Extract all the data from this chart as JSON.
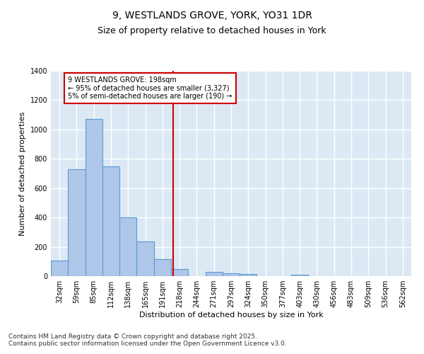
{
  "title1": "9, WESTLANDS GROVE, YORK, YO31 1DR",
  "title2": "Size of property relative to detached houses in York",
  "xlabel": "Distribution of detached houses by size in York",
  "ylabel": "Number of detached properties",
  "bin_labels": [
    "32sqm",
    "59sqm",
    "85sqm",
    "112sqm",
    "138sqm",
    "165sqm",
    "191sqm",
    "218sqm",
    "244sqm",
    "271sqm",
    "297sqm",
    "324sqm",
    "350sqm",
    "377sqm",
    "403sqm",
    "430sqm",
    "456sqm",
    "483sqm",
    "509sqm",
    "536sqm",
    "562sqm"
  ],
  "bar_values": [
    107,
    730,
    1070,
    750,
    400,
    237,
    115,
    47,
    0,
    27,
    20,
    15,
    0,
    0,
    10,
    0,
    0,
    0,
    0,
    0,
    0
  ],
  "bar_color": "#aec6e8",
  "bar_edge_color": "#5b9bd5",
  "background_color": "#dce9f5",
  "grid_color": "#ffffff",
  "vline_x": 6.62,
  "vline_color": "#cc0000",
  "annotation_text": "9 WESTLANDS GROVE: 198sqm\n← 95% of detached houses are smaller (3,327)\n5% of semi-detached houses are larger (190) →",
  "annotation_box_color": "#ffffff",
  "annotation_border_color": "#cc0000",
  "ylim": [
    0,
    1400
  ],
  "yticks": [
    0,
    200,
    400,
    600,
    800,
    1000,
    1200,
    1400
  ],
  "footer_text": "Contains HM Land Registry data © Crown copyright and database right 2025.\nContains public sector information licensed under the Open Government Licence v3.0.",
  "title_fontsize": 10,
  "subtitle_fontsize": 9,
  "axis_label_fontsize": 8,
  "tick_fontsize": 7,
  "annotation_fontsize": 7,
  "footer_fontsize": 6.5
}
